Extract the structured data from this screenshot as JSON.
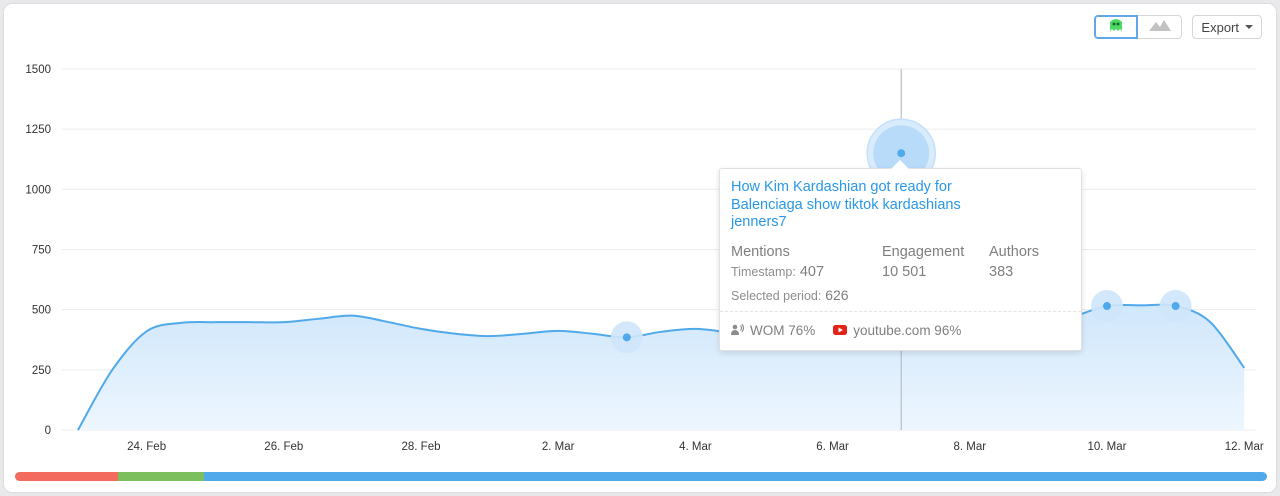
{
  "toolbar": {
    "view_buttons": [
      {
        "icon": "monster-icon",
        "active": true
      },
      {
        "icon": "mountain-icon",
        "active": false
      }
    ],
    "export_label": "Export"
  },
  "chart_data": {
    "type": "area",
    "title": "",
    "xlabel": "",
    "ylabel": "",
    "ylim": [
      0,
      1500
    ],
    "yticks": [
      0,
      250,
      500,
      750,
      1000,
      1250,
      1500
    ],
    "xtick_labels": [
      "24. Feb",
      "26. Feb",
      "28. Feb",
      "2. Mar",
      "4. Mar",
      "6. Mar",
      "8. Mar",
      "10. Mar",
      "12. Mar"
    ],
    "x_ticks_day_index": [
      1,
      3,
      5,
      7,
      9,
      11,
      13,
      15,
      17
    ],
    "grid": true,
    "series": [
      {
        "x_day_index": [
          0,
          0.5,
          1,
          1.5,
          2,
          2.5,
          3,
          3.5,
          4,
          4.5,
          5,
          5.5,
          6,
          6.5,
          7,
          7.5,
          8,
          8.5,
          9,
          9.5,
          10,
          10.5,
          11,
          11.5,
          12,
          12.5,
          13,
          13.5,
          14,
          14.5,
          15,
          15.5,
          16,
          16.5,
          17
        ],
        "values": [
          0,
          250,
          410,
          445,
          448,
          448,
          448,
          462,
          475,
          450,
          420,
          400,
          390,
          400,
          412,
          400,
          385,
          408,
          420,
          405,
          390,
          420,
          600,
          1000,
          1150,
          1000,
          600,
          480,
          430,
          470,
          515,
          518,
          515,
          450,
          258
        ]
      }
    ],
    "highlighted_points": [
      {
        "x_day_index": 8,
        "value": 385
      },
      {
        "x_day_index": 12,
        "value": 1150
      },
      {
        "x_day_index": 15,
        "value": 515
      },
      {
        "x_day_index": 16,
        "value": 515
      }
    ],
    "crosshair_x_day_index": 12,
    "colors": {
      "line": "#4fa9ea",
      "fill_top": "#aed5f8",
      "fill_bottom": "#edf6fe",
      "grid": "#ececec"
    }
  },
  "tooltip": {
    "title": "How Kim Kardashian got ready for Balenciaga show tiktok kardashians jenners7",
    "mentions_label": "Mentions",
    "timestamp_label": "Timestamp:",
    "timestamp_value": "407",
    "engagement_label": "Engagement",
    "engagement_value": "10 501",
    "authors_label": "Authors",
    "authors_value": "383",
    "selected_period_label": "Selected period:",
    "selected_period_value": "626",
    "wom_label": "WOM 76%",
    "youtube_label": "youtube.com 96%"
  },
  "bottom_bar": {
    "segments": [
      {
        "name": "negative",
        "color": "#f26b5e",
        "fraction": 0.082
      },
      {
        "name": "positive",
        "color": "#7cbf5f",
        "fraction": 0.069
      },
      {
        "name": "neutral",
        "color": "#4fa9ea",
        "fraction": 0.849
      }
    ]
  }
}
